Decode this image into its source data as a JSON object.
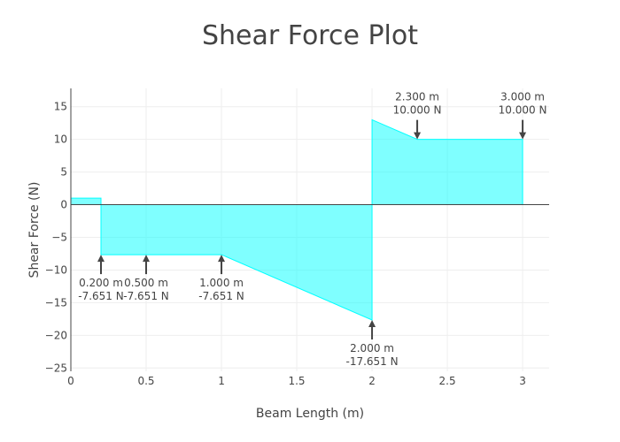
{
  "chart_data": {
    "type": "area",
    "title": "Shear Force Plot",
    "xlabel": "Beam Length (m)",
    "ylabel": "Shear Force (N)",
    "xlim": [
      0,
      3.176
    ],
    "ylim": [
      -25.5,
      17.8
    ],
    "x_ticks": [
      0,
      0.5,
      1,
      1.5,
      2,
      2.5,
      3
    ],
    "x_tick_labels": [
      "0",
      "0.5",
      "1",
      "1.5",
      "2",
      "2.5",
      "3"
    ],
    "y_ticks": [
      15,
      10,
      5,
      0,
      -5,
      -10,
      -15,
      -20,
      -25
    ],
    "y_tick_labels": [
      "15",
      "10",
      "5",
      "0",
      "−5",
      "−10",
      "−15",
      "−20",
      "−25"
    ],
    "grid": true,
    "fill_color": "#00ffff",
    "line_color": "#00ffff",
    "series": [
      {
        "x": [
          0,
          0.2,
          0.2,
          0.5,
          1.0,
          2.0,
          2.0,
          2.3,
          3.0,
          3.0
        ],
        "y": [
          1.0,
          1.0,
          -7.651,
          -7.651,
          -7.651,
          -17.651,
          13.0,
          10.0,
          10.0,
          0
        ]
      }
    ],
    "annotations": [
      {
        "x": 0.2,
        "y": -7.651,
        "line1": "0.200 m",
        "line2": "-7.651 N",
        "side": "below"
      },
      {
        "x": 0.5,
        "y": -7.651,
        "line1": "0.500 m",
        "line2": "-7.651 N",
        "side": "below"
      },
      {
        "x": 1.0,
        "y": -7.651,
        "line1": "1.000 m",
        "line2": "-7.651 N",
        "side": "below"
      },
      {
        "x": 2.0,
        "y": -17.651,
        "line1": "2.000 m",
        "line2": "-17.651 N",
        "side": "below"
      },
      {
        "x": 2.3,
        "y": 10.0,
        "line1": "2.300 m",
        "line2": "10.000 N",
        "side": "above"
      },
      {
        "x": 3.0,
        "y": 10.0,
        "line1": "3.000 m",
        "line2": "10.000 N",
        "side": "above"
      }
    ]
  }
}
